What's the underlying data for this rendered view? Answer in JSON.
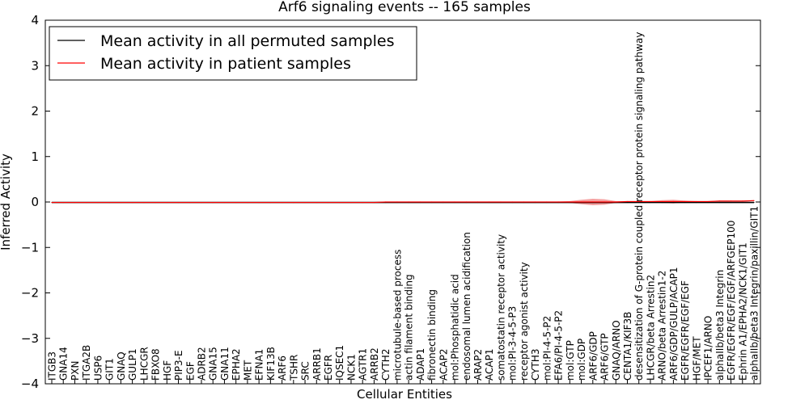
{
  "chart_data": {
    "type": "line",
    "title": "Arf6 signaling events -- 165 samples",
    "xlabel": "Cellular Entities",
    "ylabel": "Inferred Activity",
    "ylim": [
      -4,
      4
    ],
    "yticks": [
      "−4",
      "−3",
      "−2",
      "−1",
      "0",
      "1",
      "2",
      "3",
      "4"
    ],
    "legend_position": "top-left",
    "grid": false,
    "categories": [
      "ITGB3",
      "GNA14",
      "PXN",
      "ITGA2B",
      "USP6",
      "GIT1",
      "GNAQ",
      "GULP1",
      "LHCGR",
      "FBXO8",
      "HGF",
      "PIP3-E",
      "EGF",
      "ADRB2",
      "GNA15",
      "GNA11",
      "EPHA2",
      "MET",
      "EFNA1",
      "KIF13B",
      "ARF6",
      "TSHR",
      "SRC",
      "ARRB1",
      "EGFR",
      "IQSEC1",
      "NCK1",
      "AGTR1",
      "ARRB2",
      "CYTH2",
      "microtubule-based process",
      "actin filament binding",
      "ADAP1",
      "fibronectin binding",
      "ACAP2",
      "mol:Phosphatidic acid",
      "endosomal lumen acidification",
      "ARAP2",
      "ACAP1",
      "somatostatin receptor activity",
      "mol:PI-3-4-5-P3",
      "receptor agonist activity",
      "CYTH3",
      "mol:PI-4-5-P2",
      "EFA6/PI-4-5-P2",
      "mol:GTP",
      "mol:GDP",
      "ARF6/GDP",
      "ARF6/GTP",
      "GNAQ/ARNO",
      "CENTA1/KIF3B",
      "desensitization of G-protein coupled receptor protein signaling pathway",
      "LHCGR/beta Arrestin2",
      "ARNO/beta Arrestin1-2",
      "ARF6/GDP/GULP/ACAP1",
      "EGFR/EGFR/EGF/EGF",
      "HGF/MET",
      "IPCEF1/ARNO",
      "alphaIIb/beta3 Integrin",
      "EGFR/EGFR/EGF/EGF/ARFGEP100",
      "Ephrin A1/EPHA2/NCK1/GIT1",
      "alphaIIb/beta3 Integrin/paxillin/GIT1"
    ],
    "series": [
      {
        "name": "Mean activity in all permuted samples",
        "color": "#000000",
        "values": [
          -0.01,
          -0.01,
          -0.01,
          -0.01,
          -0.01,
          -0.01,
          -0.01,
          -0.01,
          -0.01,
          -0.01,
          -0.01,
          -0.01,
          -0.01,
          -0.01,
          -0.01,
          -0.01,
          -0.01,
          -0.01,
          -0.01,
          -0.01,
          -0.01,
          -0.01,
          -0.01,
          -0.01,
          -0.01,
          -0.01,
          -0.01,
          -0.01,
          -0.01,
          -0.01,
          -0.01,
          -0.01,
          -0.01,
          -0.01,
          -0.01,
          -0.01,
          -0.01,
          -0.01,
          -0.01,
          -0.01,
          -0.01,
          -0.01,
          -0.01,
          -0.01,
          -0.01,
          -0.01,
          -0.01,
          -0.01,
          -0.01,
          -0.01,
          -0.01,
          -0.01,
          -0.01,
          -0.01,
          -0.01,
          -0.01,
          -0.01,
          -0.01,
          -0.01,
          -0.01,
          -0.01,
          -0.01
        ]
      },
      {
        "name": "Mean activity in patient samples",
        "color": "#ff0000",
        "values": [
          -0.01,
          -0.01,
          -0.01,
          -0.01,
          -0.01,
          -0.01,
          -0.01,
          -0.01,
          -0.01,
          -0.01,
          -0.01,
          -0.01,
          -0.01,
          -0.01,
          -0.01,
          -0.01,
          -0.01,
          -0.01,
          -0.01,
          -0.01,
          -0.01,
          -0.01,
          -0.01,
          -0.01,
          -0.01,
          -0.01,
          -0.01,
          -0.01,
          -0.01,
          0.0,
          0.0,
          0.0,
          0.0,
          0.0,
          0.0,
          0.0,
          0.0,
          0.0,
          0.0,
          0.0,
          0.0,
          0.0,
          0.0,
          0.0,
          0.0,
          0.0,
          0.0,
          0.0,
          0.0,
          0.0,
          0.01,
          0.01,
          0.01,
          0.01,
          0.01,
          0.01,
          0.01,
          0.01,
          0.02,
          0.02,
          0.02,
          0.03
        ]
      }
    ],
    "band": {
      "color": "#f08080",
      "half_width": [
        0,
        0,
        0,
        0,
        0,
        0,
        0,
        0,
        0,
        0,
        0,
        0,
        0,
        0,
        0,
        0,
        0,
        0,
        0,
        0,
        0,
        0,
        0,
        0,
        0,
        0,
        0,
        0,
        0.01,
        0.01,
        0.01,
        0.01,
        0.01,
        0.01,
        0.01,
        0.01,
        0.01,
        0.01,
        0.01,
        0.01,
        0.01,
        0.01,
        0.01,
        0.01,
        0.01,
        0.02,
        0.05,
        0.07,
        0.06,
        0.02,
        0.01,
        0.01,
        0.01,
        0.03,
        0.04,
        0.02,
        0.01,
        0.01,
        0.01,
        0.01,
        0.01,
        0.01
      ]
    }
  }
}
